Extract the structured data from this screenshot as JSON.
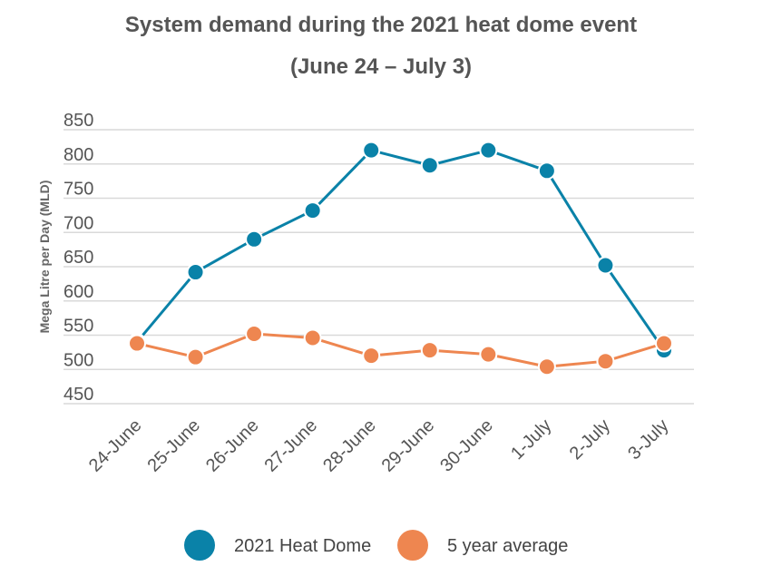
{
  "chart_data": {
    "type": "line",
    "title": "System demand during the 2021 heat dome event",
    "subtitle": "(June 24 – July 3)",
    "ylabel": "Mega Litre per Day (MLD)",
    "xlabel": "",
    "ylim": [
      450,
      850
    ],
    "yticks": [
      450,
      500,
      550,
      600,
      650,
      700,
      750,
      800,
      850
    ],
    "grid": true,
    "legend_position": "bottom-center",
    "categories": [
      "24-June",
      "25-June",
      "26-June",
      "27-June",
      "28-June",
      "29-June",
      "30-June",
      "1-July",
      "2-July",
      "3-July"
    ],
    "series": [
      {
        "name": "2021 Heat Dome",
        "color": "#0a82a8",
        "values": [
          540,
          642,
          690,
          732,
          820,
          798,
          820,
          790,
          652,
          528
        ]
      },
      {
        "name": "5 year average",
        "color": "#ee8650",
        "values": [
          538,
          518,
          552,
          546,
          520,
          528,
          522,
          504,
          512,
          538
        ]
      }
    ]
  }
}
